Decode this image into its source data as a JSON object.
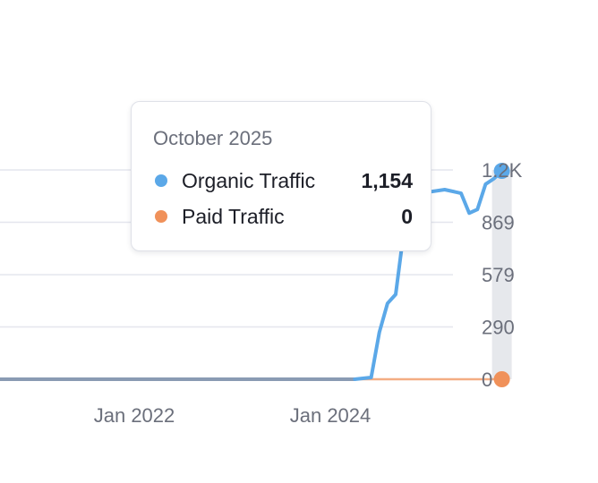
{
  "tooltip": {
    "date": "October 2025",
    "rows": [
      {
        "label": "Organic Traffic",
        "value": "1,154",
        "color": "#5ba8e8"
      },
      {
        "label": "Paid Traffic",
        "value": "0",
        "color": "#f0915a"
      }
    ]
  },
  "chart_data": {
    "type": "line",
    "ylim": [
      0,
      1159
    ],
    "y_ticks": [
      "1.2K",
      "869",
      "579",
      "290",
      "0"
    ],
    "y_tick_values": [
      1159,
      869,
      579,
      290,
      0
    ],
    "x_ticks": [
      {
        "label": "Jan 2022",
        "value": "2022-01"
      },
      {
        "label": "Jan 2024",
        "value": "2024-01"
      }
    ],
    "grid": true,
    "series": [
      {
        "name": "Organic Traffic",
        "color": "#5ba8e8",
        "points": [
          [
            "2020-01",
            0
          ],
          [
            "2024-04",
            0
          ],
          [
            "2024-06",
            10
          ],
          [
            "2024-07",
            260
          ],
          [
            "2024-08",
            420
          ],
          [
            "2024-09",
            470
          ],
          [
            "2024-10",
            820
          ],
          [
            "2024-11",
            960
          ],
          [
            "2024-12",
            1030
          ],
          [
            "2025-03",
            1050
          ],
          [
            "2025-05",
            1030
          ],
          [
            "2025-06",
            920
          ],
          [
            "2025-07",
            940
          ],
          [
            "2025-08",
            1080
          ],
          [
            "2025-09",
            1110
          ],
          [
            "2025-10",
            1154
          ]
        ]
      },
      {
        "name": "Paid Traffic",
        "color": "#f0915a",
        "points": [
          [
            "2020-01",
            0
          ],
          [
            "2025-10",
            0
          ]
        ]
      }
    ],
    "hover": {
      "date": "2025-10",
      "band_color": "#e6e8ec"
    }
  }
}
